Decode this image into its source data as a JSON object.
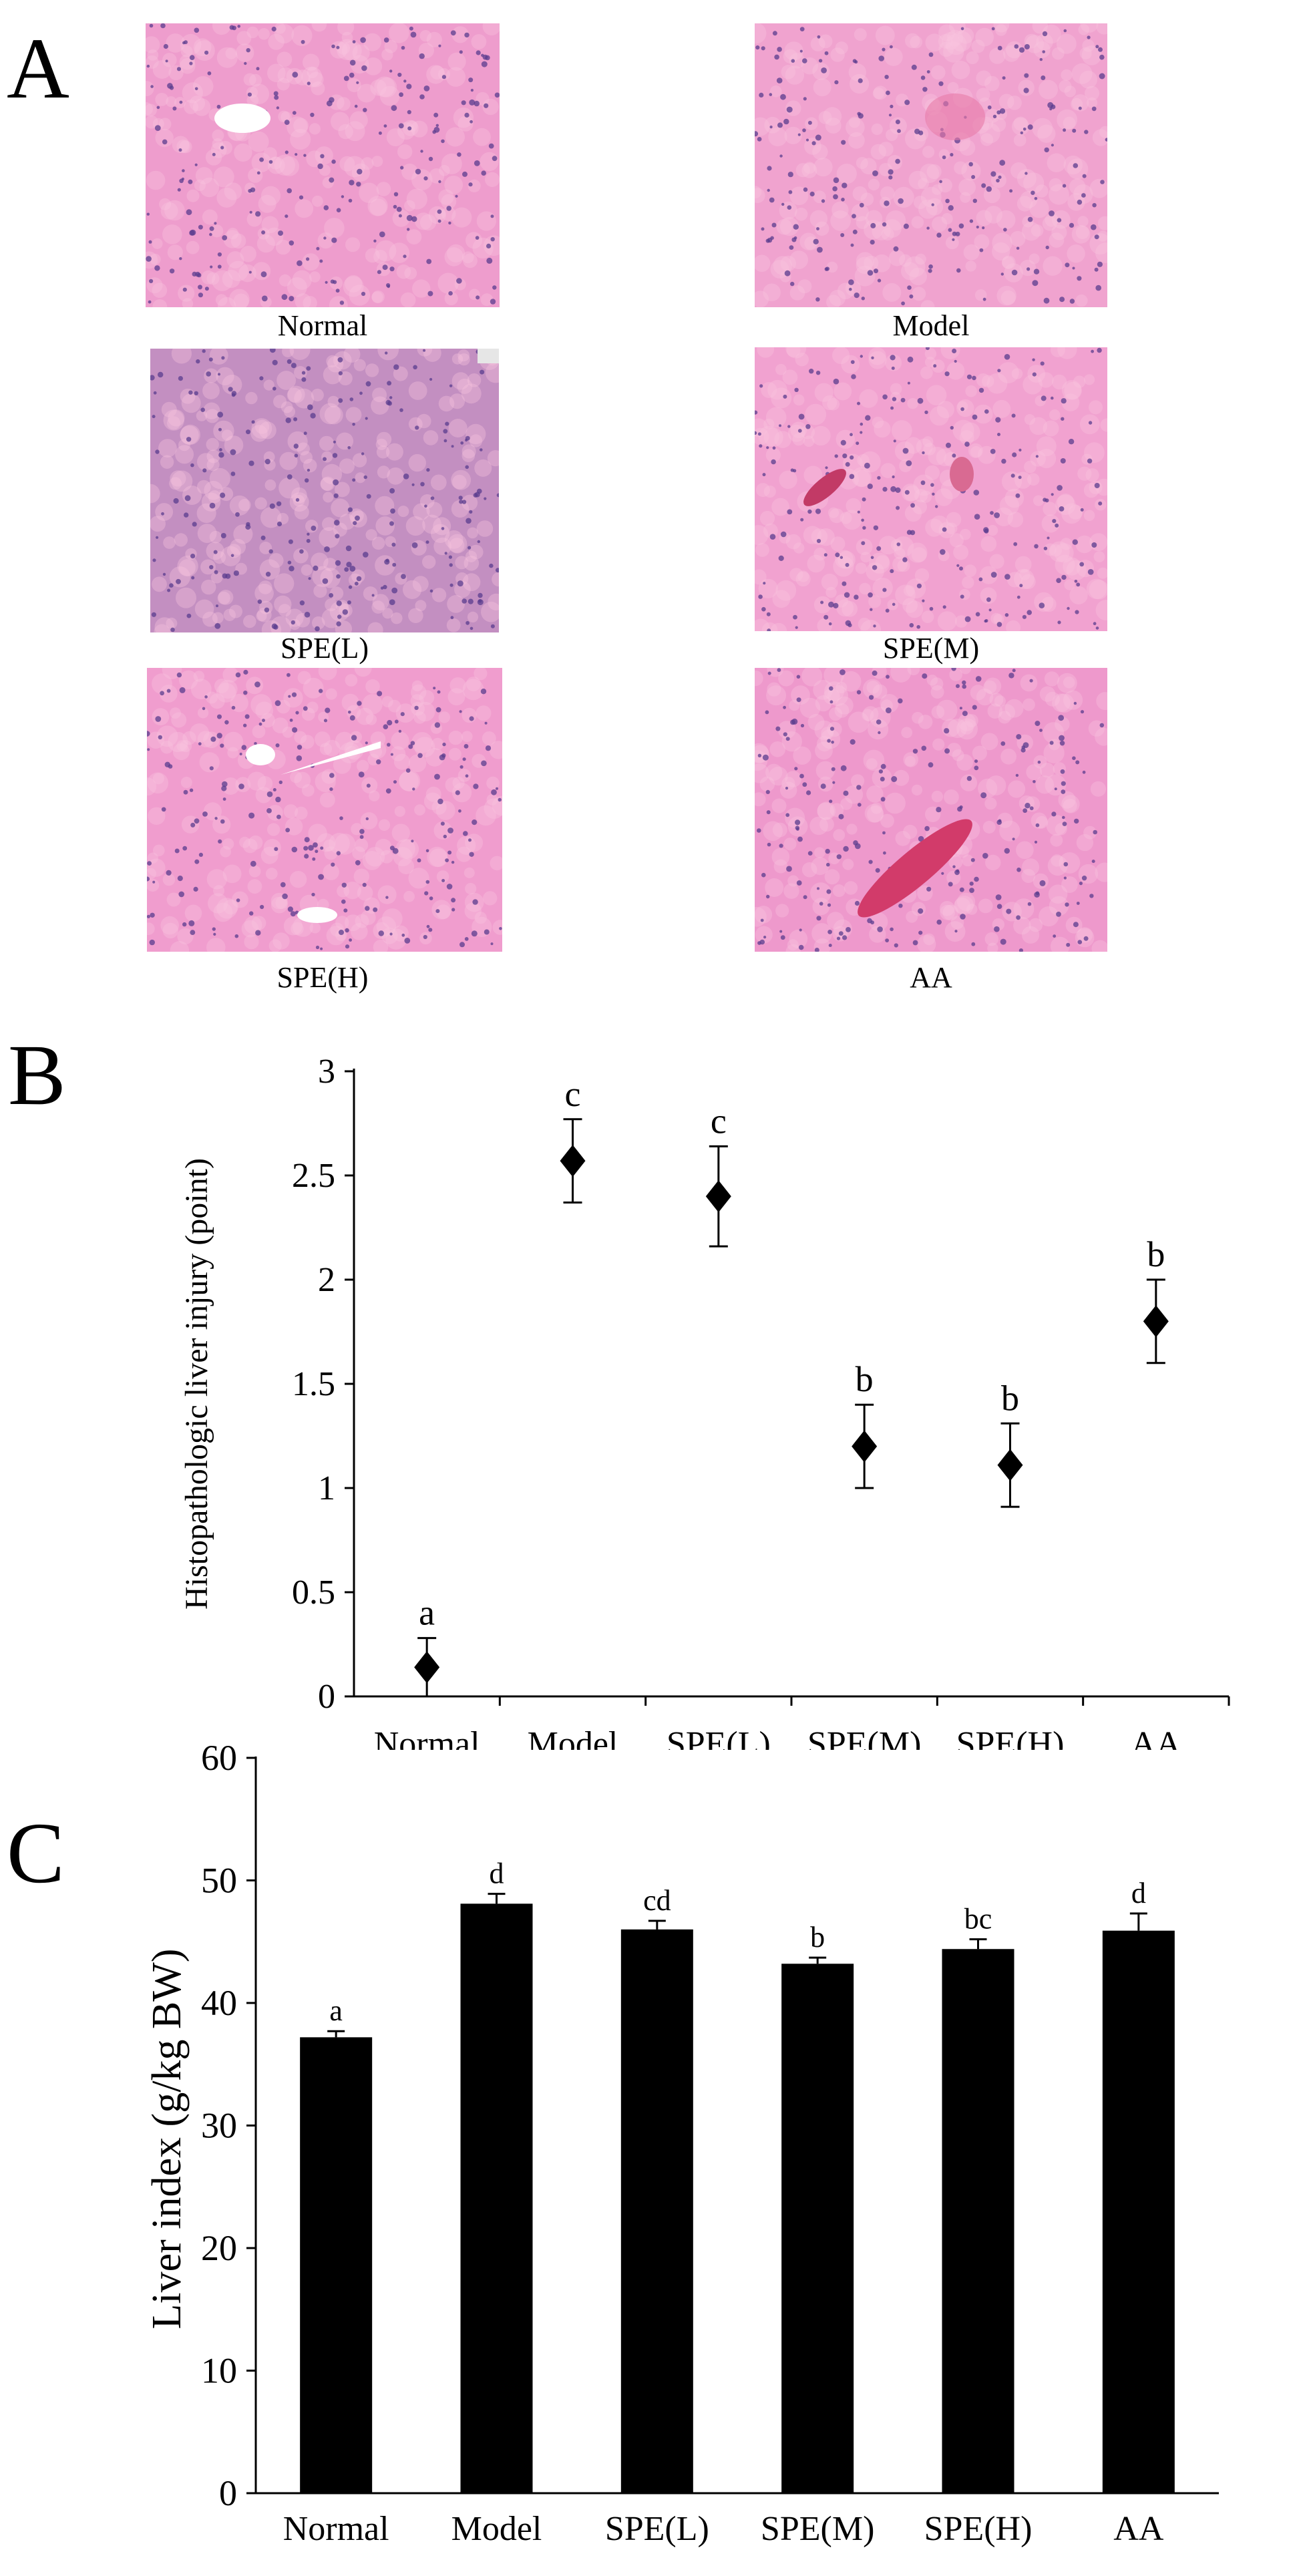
{
  "panels": {
    "a": "A",
    "b": "B",
    "c": "C"
  },
  "micrographs": [
    {
      "label": "Normal",
      "tint": "#ee9dcd"
    },
    {
      "label": "Model",
      "tint": "#f0a3cf"
    },
    {
      "label": "SPE(L)",
      "tint": "#c38fc1"
    },
    {
      "label": "SPE(M)",
      "tint": "#f1a2d0"
    },
    {
      "label": "SPE(H)",
      "tint": "#f09dce"
    },
    {
      "label": "AA",
      "tint": "#ee99cc"
    }
  ],
  "chart_data": [
    {
      "type": "scatter",
      "ylabel": "Histopathologic liver injury (point)",
      "categories": [
        "Normal",
        "Model",
        "SPE(L)",
        "SPE(M)",
        "SPE(H)",
        "AA"
      ],
      "values": [
        0.14,
        2.57,
        2.4,
        1.2,
        1.11,
        1.8
      ],
      "errors": [
        0.14,
        0.2,
        0.24,
        0.2,
        0.2,
        0.2
      ],
      "letters": [
        "a",
        "c",
        "c",
        "b",
        "b",
        "b"
      ],
      "ylim": [
        0,
        3
      ],
      "yticks": [
        "0",
        "0.5",
        "1",
        "1.5",
        "2",
        "2.5",
        "3"
      ],
      "ytick_values": [
        0,
        0.5,
        1,
        1.5,
        2,
        2.5,
        3
      ],
      "grid": false
    },
    {
      "type": "bar",
      "ylabel": "Liver index (g/kg BW)",
      "categories": [
        "Normal",
        "Model",
        "SPE(L)",
        "SPE(M)",
        "SPE(H)",
        "AA"
      ],
      "values": [
        37.2,
        48.1,
        46.0,
        43.2,
        44.4,
        45.9
      ],
      "errors": [
        0.5,
        0.8,
        0.7,
        0.5,
        0.8,
        1.4
      ],
      "letters": [
        "a",
        "d",
        "cd",
        "b",
        "bc",
        "d"
      ],
      "ylim": [
        0,
        60
      ],
      "yticks": [
        "0",
        "10",
        "20",
        "30",
        "40",
        "50",
        "60"
      ],
      "ytick_values": [
        0,
        10,
        20,
        30,
        40,
        50,
        60
      ],
      "grid": false
    }
  ]
}
